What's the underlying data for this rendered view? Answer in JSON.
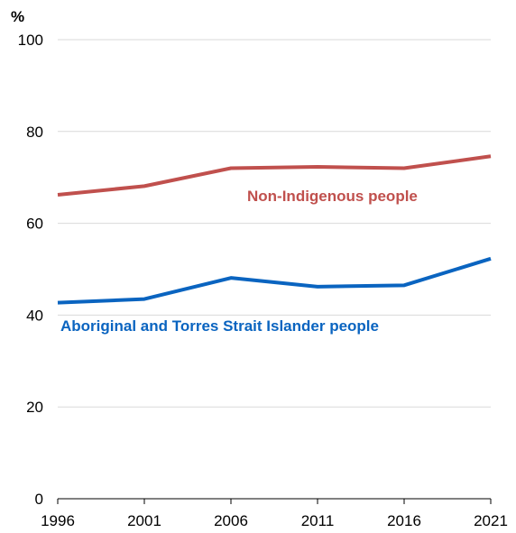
{
  "chart_data": {
    "type": "line",
    "ylabel": "%",
    "ylim": [
      0,
      100
    ],
    "yticks": [
      0,
      20,
      40,
      60,
      80,
      100
    ],
    "x": [
      "1996",
      "2001",
      "2006",
      "2011",
      "2016",
      "2021"
    ],
    "grid": true,
    "series": [
      {
        "name": "Non-Indigenous people",
        "color": "#c0504d",
        "values": [
          66.2,
          68.1,
          72.0,
          72.3,
          72.0,
          74.6
        ]
      },
      {
        "name": "Aboriginal and Torres Strait Islander people",
        "color": "#0a64c0",
        "values": [
          42.7,
          43.5,
          48.1,
          46.2,
          46.5,
          52.3
        ]
      }
    ]
  }
}
